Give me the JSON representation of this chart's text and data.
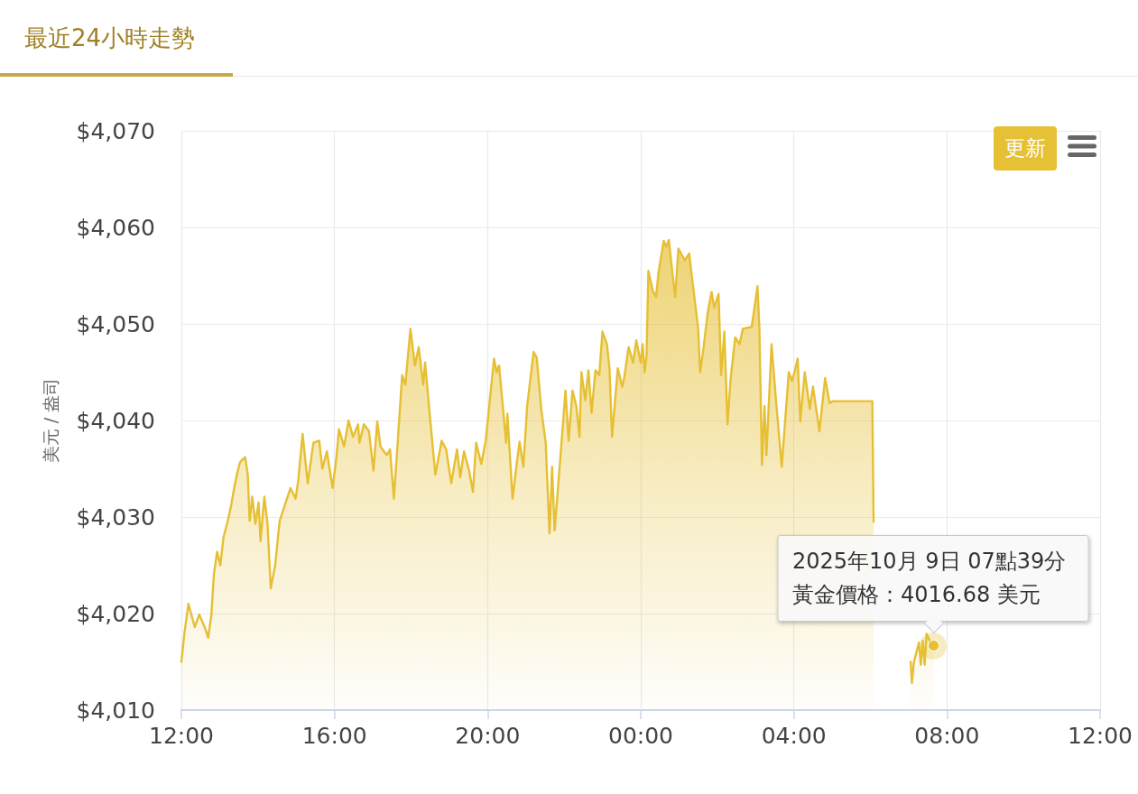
{
  "chart_data": {
    "type": "area",
    "title": "最近24小時走勢",
    "ylabel": "美元 / 盎司",
    "color": "#e6bf33",
    "x": [
      "2025-10-08T12:00",
      "2025-10-08T12:05",
      "2025-10-08T12:11",
      "2025-10-08T12:21",
      "2025-10-08T12:28",
      "2025-10-08T12:37",
      "2025-10-08T12:42",
      "2025-10-08T12:47",
      "2025-10-08T12:51",
      "2025-10-08T12:56",
      "2025-10-08T13:01",
      "2025-10-08T13:06",
      "2025-10-08T13:13",
      "2025-10-08T13:18",
      "2025-10-08T13:23",
      "2025-10-08T13:27",
      "2025-10-08T13:32",
      "2025-10-08T13:40",
      "2025-10-08T13:44",
      "2025-10-08T13:47",
      "2025-10-08T13:51",
      "2025-10-08T13:56",
      "2025-10-08T14:01",
      "2025-10-08T14:04",
      "2025-10-08T14:10",
      "2025-10-08T14:15",
      "2025-10-08T14:20",
      "2025-10-08T14:27",
      "2025-10-08T14:34",
      "2025-10-08T14:42",
      "2025-10-08T14:51",
      "2025-10-08T14:59",
      "2025-10-08T15:03",
      "2025-10-08T15:10",
      "2025-10-08T15:18",
      "2025-10-08T15:27",
      "2025-10-08T15:36",
      "2025-10-08T15:41",
      "2025-10-08T15:48",
      "2025-10-08T15:57",
      "2025-10-08T16:03",
      "2025-10-08T16:07",
      "2025-10-08T16:15",
      "2025-10-08T16:22",
      "2025-10-08T16:29",
      "2025-10-08T16:37",
      "2025-10-08T16:39",
      "2025-10-08T16:46",
      "2025-10-08T16:54",
      "2025-10-08T17:01",
      "2025-10-08T17:07",
      "2025-10-08T17:12",
      "2025-10-08T17:22",
      "2025-10-08T17:27",
      "2025-10-08T17:33",
      "2025-10-08T17:39",
      "2025-10-08T17:46",
      "2025-10-08T17:51",
      "2025-10-08T17:59",
      "2025-10-08T18:06",
      "2025-10-08T18:12",
      "2025-10-08T18:19",
      "2025-10-08T18:22",
      "2025-10-08T18:29",
      "2025-10-08T18:38",
      "2025-10-08T18:48",
      "2025-10-08T18:55",
      "2025-10-08T19:03",
      "2025-10-08T19:12",
      "2025-10-08T19:17",
      "2025-10-08T19:23",
      "2025-10-08T19:31",
      "2025-10-08T19:37",
      "2025-10-08T19:42",
      "2025-10-08T19:50",
      "2025-10-08T19:57",
      "2025-10-08T20:10",
      "2025-10-08T20:14",
      "2025-10-08T20:18",
      "2025-10-08T20:29",
      "2025-10-08T20:31",
      "2025-10-08T20:39",
      "2025-10-08T20:46",
      "2025-10-08T20:50",
      "2025-10-08T20:56",
      "2025-10-08T21:02",
      "2025-10-08T21:12",
      "2025-10-08T21:17",
      "2025-10-08T21:24",
      "2025-10-08T21:31",
      "2025-10-08T21:37",
      "2025-10-08T21:41",
      "2025-10-08T21:45",
      "2025-10-08T21:55",
      "2025-10-08T22:02",
      "2025-10-08T22:07",
      "2025-10-08T22:13",
      "2025-10-08T22:19",
      "2025-10-08T22:24",
      "2025-10-08T22:27",
      "2025-10-08T22:33",
      "2025-10-08T22:38",
      "2025-10-08T22:43",
      "2025-10-08T22:49",
      "2025-10-08T22:55",
      "2025-10-08T23:00",
      "2025-10-08T23:07",
      "2025-10-08T23:11",
      "2025-10-08T23:15",
      "2025-10-08T23:24",
      "2025-10-08T23:31",
      "2025-10-08T23:34",
      "2025-10-08T23:41",
      "2025-10-08T23:48",
      "2025-10-08T23:53",
      "2025-10-09T00:00",
      "2025-10-09T00:03",
      "2025-10-09T00:06",
      "2025-10-09T00:09",
      "2025-10-09T00:12",
      "2025-10-09T00:19",
      "2025-10-09T00:24",
      "2025-10-09T00:28",
      "2025-10-09T00:36",
      "2025-10-09T00:40",
      "2025-10-09T00:44",
      "2025-10-09T00:49",
      "2025-10-09T00:54",
      "2025-10-09T00:59",
      "2025-10-09T01:09",
      "2025-10-09T01:16",
      "2025-10-09T01:21",
      "2025-10-09T01:23",
      "2025-10-09T01:30",
      "2025-10-09T01:33",
      "2025-10-09T01:38",
      "2025-10-09T01:45",
      "2025-10-09T01:51",
      "2025-10-09T01:55",
      "2025-10-09T02:02",
      "2025-10-09T02:06",
      "2025-10-09T02:11",
      "2025-10-09T02:16",
      "2025-10-09T02:21",
      "2025-10-09T02:28",
      "2025-10-09T02:35",
      "2025-10-09T02:40",
      "2025-10-09T02:54",
      "2025-10-09T03:03",
      "2025-10-09T03:06",
      "2025-10-09T03:10",
      "2025-10-09T03:14",
      "2025-10-09T03:17",
      "2025-10-09T03:25",
      "2025-10-09T03:32",
      "2025-10-09T03:41",
      "2025-10-09T03:52",
      "2025-10-09T03:57",
      "2025-10-09T04:01",
      "2025-10-09T04:06",
      "2025-10-09T04:10",
      "2025-10-09T04:17",
      "2025-10-09T04:25",
      "2025-10-09T04:30",
      "2025-10-09T04:40",
      "2025-10-09T04:49",
      "2025-10-09T04:56",
      "2025-10-09T05:01",
      "2025-10-09T06:03",
      "2025-10-09T06:04",
      "2025-10-09T06:05",
      "2025-10-09T06:30",
      "2025-10-09T07:03",
      "2025-10-09T07:05",
      "2025-10-09T07:08",
      "2025-10-09T07:16",
      "2025-10-09T07:19",
      "2025-10-09T07:22",
      "2025-10-09T07:25",
      "2025-10-09T07:28",
      "2025-10-09T07:33",
      "2025-10-09T07:39"
    ],
    "values": [
      4015.0,
      4018.1,
      4021.0,
      4018.6,
      4019.9,
      4018.5,
      4017.5,
      4019.9,
      4024.1,
      4026.4,
      4025.0,
      4027.9,
      4029.7,
      4031.2,
      4033.1,
      4034.4,
      4035.7,
      4036.2,
      4034.4,
      4029.6,
      4032.1,
      4029.3,
      4031.5,
      4027.5,
      4032.1,
      4029.3,
      4022.6,
      4025.0,
      4029.6,
      4031.2,
      4033.0,
      4031.9,
      4033.7,
      4038.6,
      4033.5,
      4037.7,
      4037.9,
      4035.0,
      4036.8,
      4033.0,
      4036.2,
      4039.1,
      4037.3,
      4040.0,
      4038.3,
      4039.6,
      4037.7,
      4039.6,
      4038.9,
      4034.8,
      4039.9,
      4037.3,
      4036.4,
      4037.0,
      4031.9,
      4037.7,
      4044.7,
      4043.7,
      4049.5,
      4045.7,
      4047.6,
      4043.7,
      4046.0,
      4040.8,
      4034.4,
      4037.9,
      4037.0,
      4033.5,
      4037.0,
      4034.1,
      4036.8,
      4034.8,
      4032.6,
      4037.7,
      4035.5,
      4037.9,
      4046.4,
      4045.0,
      4045.7,
      4037.7,
      4040.7,
      4031.9,
      4035.7,
      4037.8,
      4035.2,
      4041.5,
      4047.1,
      4046.5,
      4041.2,
      4037.7,
      4028.3,
      4035.2,
      4028.6,
      4037.0,
      4043.1,
      4037.9,
      4043.1,
      4041.5,
      4038.3,
      4045.0,
      4042.1,
      4045.2,
      4040.8,
      4045.2,
      4044.7,
      4049.2,
      4047.9,
      4045.4,
      4038.3,
      4045.4,
      4043.5,
      4044.4,
      4047.6,
      4046.0,
      4048.3,
      4046.0,
      4047.9,
      4045.0,
      4046.6,
      4055.5,
      4053.4,
      4052.8,
      4055.4,
      4058.6,
      4058.0,
      4058.7,
      4055.7,
      4052.8,
      4057.8,
      4056.6,
      4057.3,
      4054.4,
      4053.4,
      4049.5,
      4045.0,
      4047.3,
      4051.2,
      4053.3,
      4051.7,
      4053.1,
      4044.7,
      4049.2,
      4039.6,
      4044.4,
      4048.6,
      4047.9,
      4049.5,
      4049.7,
      4053.9,
      4049.5,
      4035.4,
      4041.5,
      4036.4,
      4047.9,
      4042.1,
      4035.2,
      4045.0,
      4044.1,
      4045.0,
      4046.4,
      4039.9,
      4045.0,
      4041.2,
      4043.5,
      4038.9,
      4044.4,
      4041.8,
      4042.0,
      4042.0,
      4035.4,
      4029.5,
      null,
      4015.0,
      4012.8,
      4014.9,
      4017.0,
      4014.7,
      4017.2,
      4014.7,
      4017.9,
      4017.2,
      4016.68
    ],
    "xlim": [
      "2025-10-08T12:00",
      "2025-10-09T12:00"
    ],
    "xticks": [
      {
        "value": "2025-10-08T12:00",
        "label": "12:00"
      },
      {
        "value": "2025-10-08T16:00",
        "label": "16:00"
      },
      {
        "value": "2025-10-08T20:00",
        "label": "20:00"
      },
      {
        "value": "2025-10-09T00:00",
        "label": "00:00"
      },
      {
        "value": "2025-10-09T04:00",
        "label": "04:00"
      },
      {
        "value": "2025-10-09T08:00",
        "label": "08:00"
      },
      {
        "value": "2025-10-09T12:00",
        "label": "12:00"
      }
    ],
    "ylim": [
      4010,
      4070
    ],
    "yticks": [
      {
        "value": 4010,
        "label": "$4,010"
      },
      {
        "value": 4020,
        "label": "$4,020"
      },
      {
        "value": 4030,
        "label": "$4,030"
      },
      {
        "value": 4040,
        "label": "$4,040"
      },
      {
        "value": 4050,
        "label": "$4,050"
      },
      {
        "value": 4060,
        "label": "$4,060"
      },
      {
        "value": 4070,
        "label": "$4,070"
      }
    ],
    "grid": true,
    "annotations": [
      "更新",
      {
        "text": "2025年10月 9日 07點39分黃金價格：4016.68 美元",
        "x": "2025-10-09T07:39",
        "y": 4016.68
      }
    ]
  }
}
